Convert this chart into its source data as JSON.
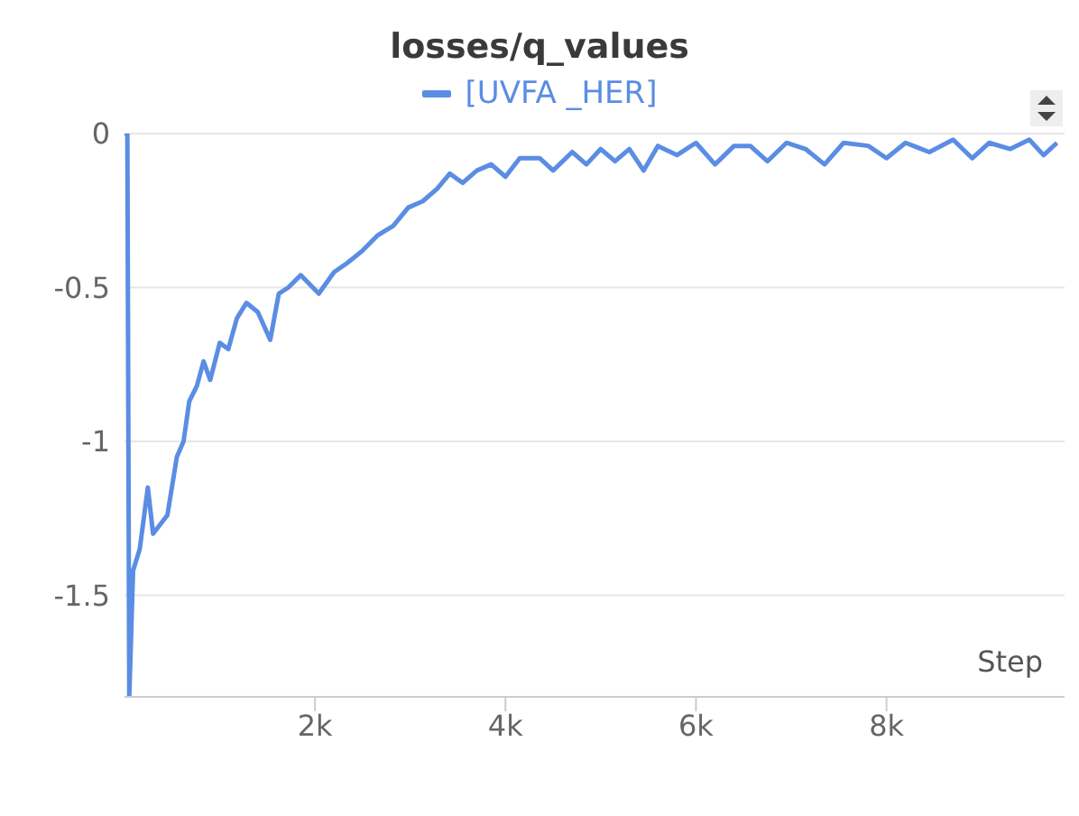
{
  "chart_data": {
    "type": "line",
    "title": "losses/q_values",
    "xlabel": "Step",
    "x": [
      0,
      30,
      50,
      90,
      160,
      245,
      300,
      450,
      550,
      620,
      680,
      760,
      830,
      900,
      1000,
      1090,
      1180,
      1280,
      1400,
      1530,
      1620,
      1720,
      1850,
      2040,
      2200,
      2340,
      2500,
      2660,
      2820,
      2980,
      3130,
      3280,
      3415,
      3550,
      3700,
      3850,
      4000,
      4150,
      4360,
      4500,
      4700,
      4850,
      5000,
      5150,
      5300,
      5450,
      5600,
      5800,
      6000,
      6200,
      6400,
      6570,
      6750,
      6950,
      7150,
      7350,
      7550,
      7810,
      8000,
      8200,
      8450,
      8700,
      8900,
      9080,
      9300,
      9500,
      9650,
      9790
    ],
    "series": [
      {
        "name": "[UVFA _HER]",
        "color": "#5a8de3",
        "values": [
          0,
          0,
          -1.83,
          -1.42,
          -1.35,
          -1.15,
          -1.3,
          -1.24,
          -1.05,
          -1.0,
          -0.87,
          -0.82,
          -0.74,
          -0.8,
          -0.68,
          -0.7,
          -0.6,
          -0.55,
          -0.58,
          -0.67,
          -0.52,
          -0.5,
          -0.46,
          -0.52,
          -0.45,
          -0.42,
          -0.38,
          -0.33,
          -0.3,
          -0.24,
          -0.22,
          -0.18,
          -0.13,
          -0.16,
          -0.12,
          -0.1,
          -0.14,
          -0.08,
          -0.08,
          -0.12,
          -0.06,
          -0.1,
          -0.05,
          -0.09,
          -0.05,
          -0.12,
          -0.04,
          -0.07,
          -0.03,
          -0.1,
          -0.04,
          -0.04,
          -0.09,
          -0.03,
          -0.05,
          -0.1,
          -0.03,
          -0.04,
          -0.08,
          -0.03,
          -0.06,
          -0.02,
          -0.08,
          -0.03,
          -0.05,
          -0.02,
          -0.07,
          -0.03
        ]
      }
    ],
    "xlim": [
      0,
      9870
    ],
    "ylim": [
      -1.83,
      0
    ],
    "xticks": [
      {
        "value": 2000,
        "label": "2k"
      },
      {
        "value": 4000,
        "label": "4k"
      },
      {
        "value": 6000,
        "label": "6k"
      },
      {
        "value": 8000,
        "label": "8k"
      }
    ],
    "yticks": [
      0,
      -0.5,
      -1,
      -1.5
    ],
    "grid": "y",
    "legend": "top",
    "marker": "none",
    "line_style": "solid"
  }
}
